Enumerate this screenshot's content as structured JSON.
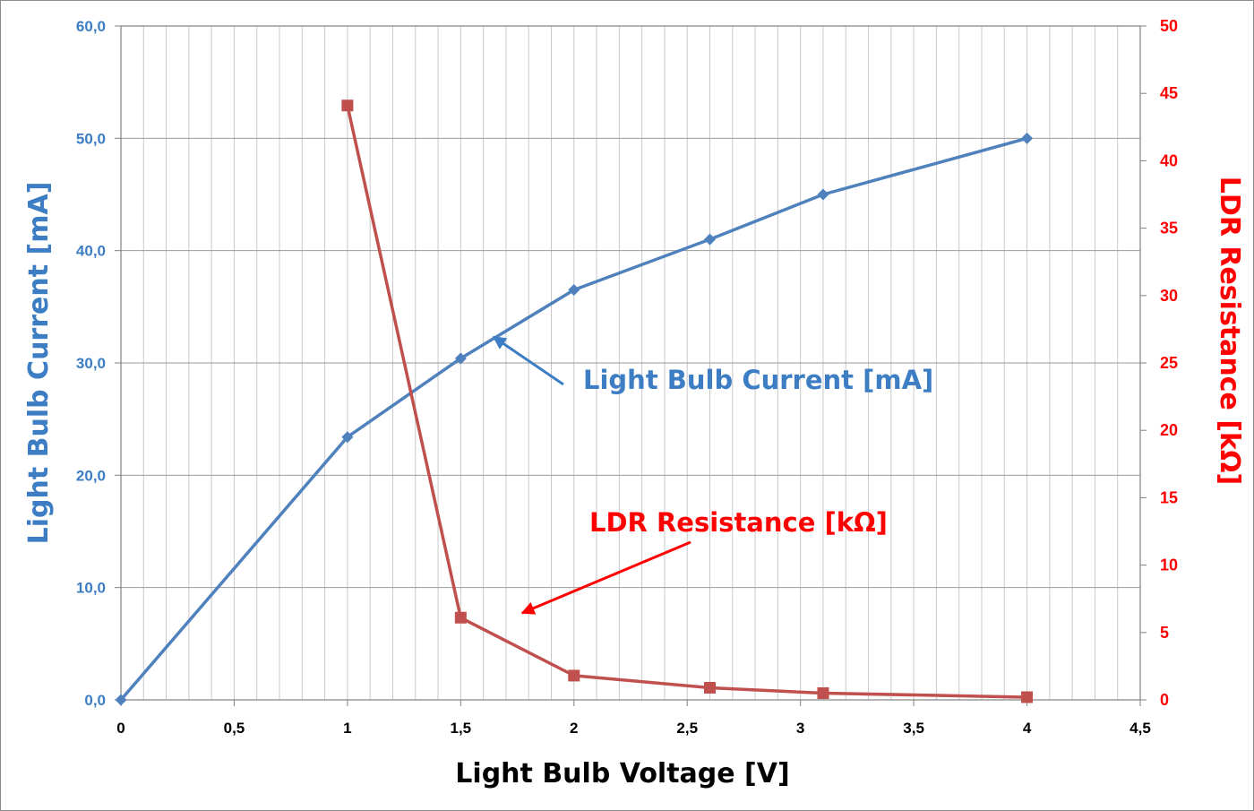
{
  "chart_data": {
    "type": "line",
    "xlabel": "Light Bulb Voltage [V]",
    "ylabel_left": "Light Bulb Current [mA]",
    "ylabel_right": "LDR Resistance [kΩ]",
    "xlim": [
      0,
      4.5
    ],
    "ylim_left": [
      0,
      60
    ],
    "ylim_right": [
      0,
      50
    ],
    "x_ticks": [
      0,
      0.5,
      1,
      1.5,
      2,
      2.5,
      3,
      3.5,
      4,
      4.5
    ],
    "x_tick_labels": [
      "0",
      "0,5",
      "1",
      "1,5",
      "2",
      "2,5",
      "3",
      "3,5",
      "4",
      "4,5"
    ],
    "y_left_ticks": [
      0,
      10,
      20,
      30,
      40,
      50,
      60
    ],
    "y_left_tick_labels": [
      "0,0",
      "10,0",
      "20,0",
      "30,0",
      "40,0",
      "50,0",
      "60,0"
    ],
    "y_right_ticks": [
      0,
      5,
      10,
      15,
      20,
      25,
      30,
      35,
      40,
      45,
      50
    ],
    "y_right_tick_labels": [
      "0",
      "5",
      "10",
      "15",
      "20",
      "25",
      "30",
      "35",
      "40",
      "45",
      "50"
    ],
    "grid": true,
    "series": [
      {
        "name": "Light Bulb Current [mA]",
        "axis": "left",
        "color": "#4F81BD",
        "marker": "diamond",
        "x": [
          0,
          1,
          1.5,
          2,
          2.6,
          3.1,
          4
        ],
        "y": [
          0,
          23.4,
          30.4,
          36.5,
          41.0,
          45.0,
          50.0
        ]
      },
      {
        "name": "LDR Resistance [kΩ]",
        "axis": "right",
        "color": "#C0504D",
        "marker": "square",
        "x": [
          1,
          1.5,
          2,
          2.6,
          3.1,
          4
        ],
        "y": [
          44.1,
          6.1,
          1.8,
          0.9,
          0.5,
          0.2
        ]
      }
    ],
    "annotations": [
      {
        "text": "Light Bulb Current [mA]",
        "color": "#3C7DC4",
        "series": 0
      },
      {
        "text": "LDR Resistance [kΩ]",
        "color": "#FF0000",
        "series": 1
      }
    ],
    "left_axis_color": "#3C7DC4",
    "right_axis_color": "#FF0000"
  }
}
